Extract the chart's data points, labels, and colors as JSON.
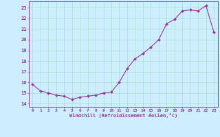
{
  "x": [
    0,
    1,
    2,
    3,
    4,
    5,
    6,
    7,
    8,
    9,
    10,
    11,
    12,
    13,
    14,
    15,
    16,
    17,
    18,
    19,
    20,
    21,
    22,
    23
  ],
  "y": [
    15.8,
    15.2,
    15.0,
    14.8,
    14.7,
    14.4,
    14.6,
    14.7,
    14.8,
    15.0,
    15.1,
    16.0,
    17.3,
    18.2,
    18.7,
    19.3,
    20.0,
    21.5,
    21.9,
    22.7,
    22.8,
    22.7,
    23.2,
    20.7
  ],
  "line_color": "#993399",
  "marker_color": "#993399",
  "bg_color": "#cceeff",
  "grid_color": "#aaddcc",
  "axis_color": "#993399",
  "xlabel": "Windchill (Refroidissement éolien,°C)",
  "ylim": [
    13.7,
    23.6
  ],
  "yticks": [
    14,
    15,
    16,
    17,
    18,
    19,
    20,
    21,
    22,
    23
  ],
  "xlim": [
    -0.5,
    23.5
  ],
  "xticks": [
    0,
    1,
    2,
    3,
    4,
    5,
    6,
    7,
    8,
    9,
    10,
    11,
    12,
    13,
    14,
    15,
    16,
    17,
    18,
    19,
    20,
    21,
    22,
    23
  ]
}
